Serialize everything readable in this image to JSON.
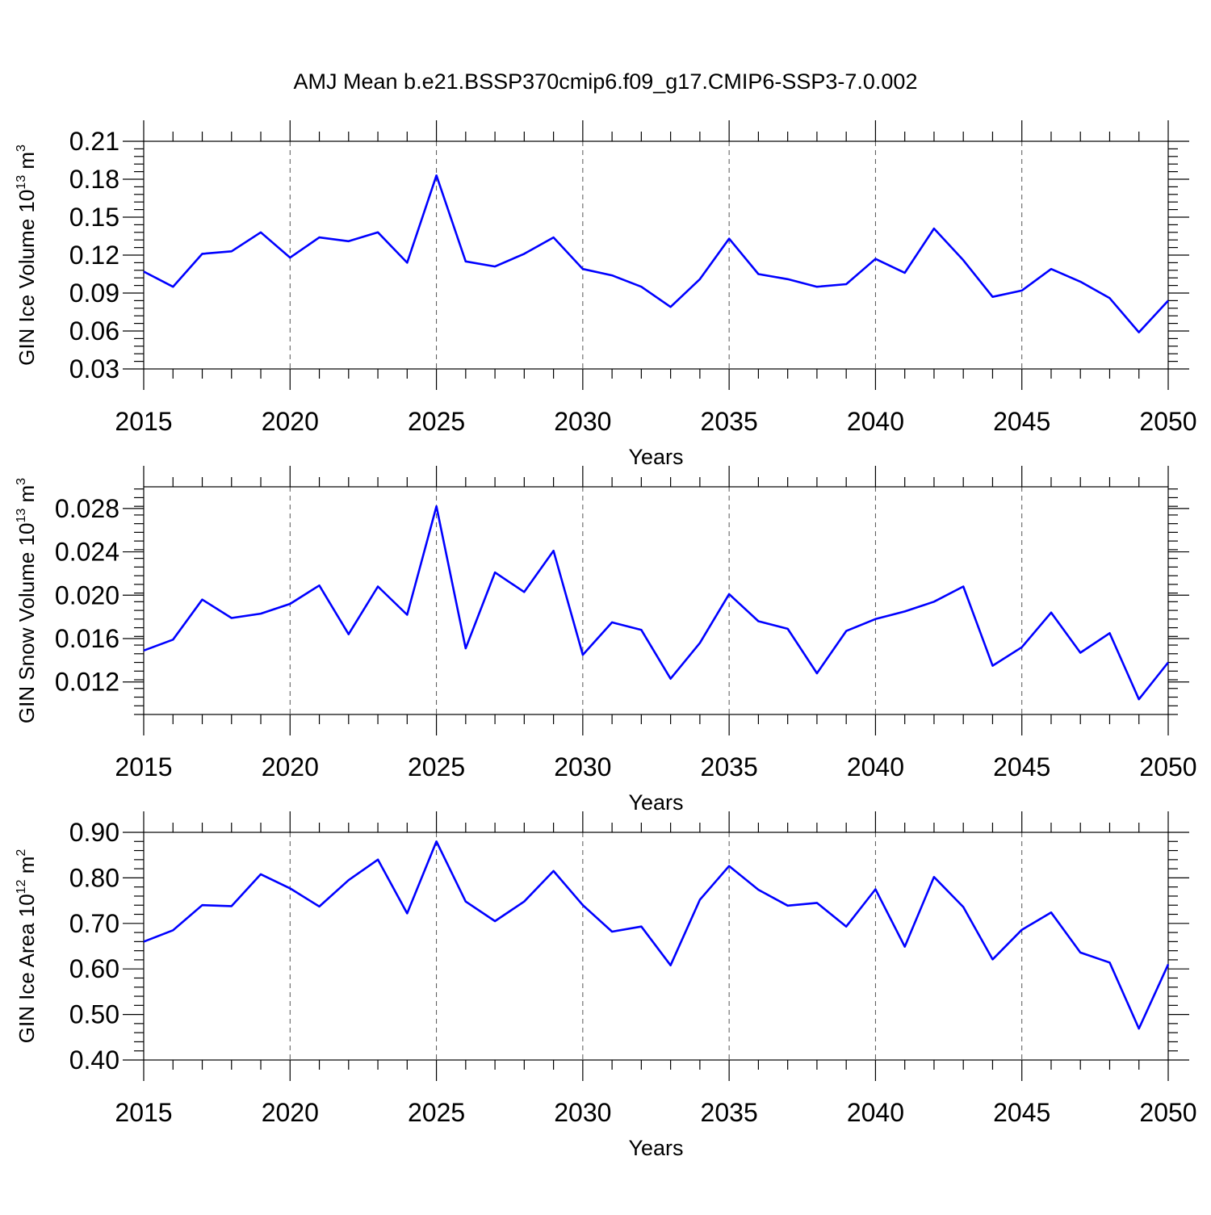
{
  "title": "AMJ Mean b.e21.BSSP370cmip6.f09_g17.CMIP6-SSP3-7.0.002",
  "colors": {
    "series": "#0000ff",
    "grid": "#555555",
    "axes": "#000000"
  },
  "chart_data": [
    {
      "type": "line",
      "ylabel": {
        "main": "GIN Ice Volume 10",
        "exp": "13",
        "unit": " m",
        "unit_exp": "3"
      },
      "xlabel": "Years",
      "xlim": [
        2015,
        2050
      ],
      "ylim": [
        0.03,
        0.21
      ],
      "yticks": [
        0.03,
        0.06,
        0.09,
        0.12,
        0.15,
        0.18,
        0.21
      ],
      "yticklabels": [
        "0.03",
        "0.06",
        "0.09",
        "0.12",
        "0.15",
        "0.18",
        "0.21"
      ],
      "xticks": [
        2015,
        2020,
        2025,
        2030,
        2035,
        2040,
        2045,
        2050
      ],
      "xticklabels": [
        "2015",
        "2020",
        "2025",
        "2030",
        "2035",
        "2040",
        "2045",
        "2050"
      ],
      "grid": "vertical-dashed",
      "x": [
        2015,
        2016,
        2017,
        2018,
        2019,
        2020,
        2021,
        2022,
        2023,
        2024,
        2025,
        2026,
        2027,
        2028,
        2029,
        2030,
        2031,
        2032,
        2033,
        2034,
        2035,
        2036,
        2037,
        2038,
        2039,
        2040,
        2041,
        2042,
        2043,
        2044,
        2045,
        2046,
        2047,
        2048,
        2049,
        2050
      ],
      "values": [
        0.107,
        0.095,
        0.121,
        0.123,
        0.138,
        0.118,
        0.134,
        0.131,
        0.138,
        0.114,
        0.183,
        0.115,
        0.111,
        0.121,
        0.134,
        0.109,
        0.104,
        0.095,
        0.079,
        0.101,
        0.133,
        0.105,
        0.101,
        0.095,
        0.097,
        0.117,
        0.106,
        0.141,
        0.116,
        0.087,
        0.092,
        0.109,
        0.099,
        0.086,
        0.059,
        0.084
      ]
    },
    {
      "type": "line",
      "ylabel": {
        "main": "GIN Snow Volume 10",
        "exp": "13",
        "unit": " m",
        "unit_exp": "3"
      },
      "xlabel": "Years",
      "xlim": [
        2015,
        2050
      ],
      "ylim": [
        0.009,
        0.03
      ],
      "yticks": [
        0.012,
        0.016,
        0.02,
        0.024,
        0.028
      ],
      "yticklabels": [
        "0.012",
        "0.016",
        "0.020",
        "0.024",
        "0.028"
      ],
      "xticks": [
        2015,
        2020,
        2025,
        2030,
        2035,
        2040,
        2045,
        2050
      ],
      "xticklabels": [
        "2015",
        "2020",
        "2025",
        "2030",
        "2035",
        "2040",
        "2045",
        "2050"
      ],
      "grid": "vertical-dashed",
      "x": [
        2015,
        2016,
        2017,
        2018,
        2019,
        2020,
        2021,
        2022,
        2023,
        2024,
        2025,
        2026,
        2027,
        2028,
        2029,
        2030,
        2031,
        2032,
        2033,
        2034,
        2035,
        2036,
        2037,
        2038,
        2039,
        2040,
        2041,
        2042,
        2043,
        2044,
        2045,
        2046,
        2047,
        2048,
        2049,
        2050
      ],
      "values": [
        0.0149,
        0.0159,
        0.0196,
        0.0179,
        0.0183,
        0.0192,
        0.0209,
        0.0164,
        0.0208,
        0.0182,
        0.0282,
        0.0151,
        0.0221,
        0.0203,
        0.0241,
        0.0145,
        0.0175,
        0.0168,
        0.0123,
        0.0156,
        0.0201,
        0.0176,
        0.0169,
        0.0128,
        0.0167,
        0.0178,
        0.0185,
        0.0194,
        0.0208,
        0.0135,
        0.0152,
        0.0184,
        0.0147,
        0.0165,
        0.0104,
        0.0138
      ]
    },
    {
      "type": "line",
      "ylabel": {
        "main": "GIN Ice Area 10",
        "exp": "12",
        "unit": " m",
        "unit_exp": "2"
      },
      "xlabel": "Years",
      "xlim": [
        2015,
        2050
      ],
      "ylim": [
        0.4,
        0.9
      ],
      "yticks": [
        0.4,
        0.5,
        0.6,
        0.7,
        0.8,
        0.9
      ],
      "yticklabels": [
        "0.40",
        "0.50",
        "0.60",
        "0.70",
        "0.80",
        "0.90"
      ],
      "xticks": [
        2015,
        2020,
        2025,
        2030,
        2035,
        2040,
        2045,
        2050
      ],
      "xticklabels": [
        "2015",
        "2020",
        "2025",
        "2030",
        "2035",
        "2040",
        "2045",
        "2050"
      ],
      "grid": "vertical-dashed",
      "x": [
        2015,
        2016,
        2017,
        2018,
        2019,
        2020,
        2021,
        2022,
        2023,
        2024,
        2025,
        2026,
        2027,
        2028,
        2029,
        2030,
        2031,
        2032,
        2033,
        2034,
        2035,
        2036,
        2037,
        2038,
        2039,
        2040,
        2041,
        2042,
        2043,
        2044,
        2045,
        2046,
        2047,
        2048,
        2049,
        2050
      ],
      "values": [
        0.66,
        0.685,
        0.74,
        0.738,
        0.808,
        0.777,
        0.737,
        0.795,
        0.84,
        0.722,
        0.88,
        0.748,
        0.705,
        0.748,
        0.815,
        0.74,
        0.682,
        0.693,
        0.608,
        0.752,
        0.826,
        0.774,
        0.739,
        0.745,
        0.693,
        0.775,
        0.649,
        0.802,
        0.736,
        0.621,
        0.686,
        0.724,
        0.636,
        0.614,
        0.469,
        0.61
      ]
    }
  ]
}
